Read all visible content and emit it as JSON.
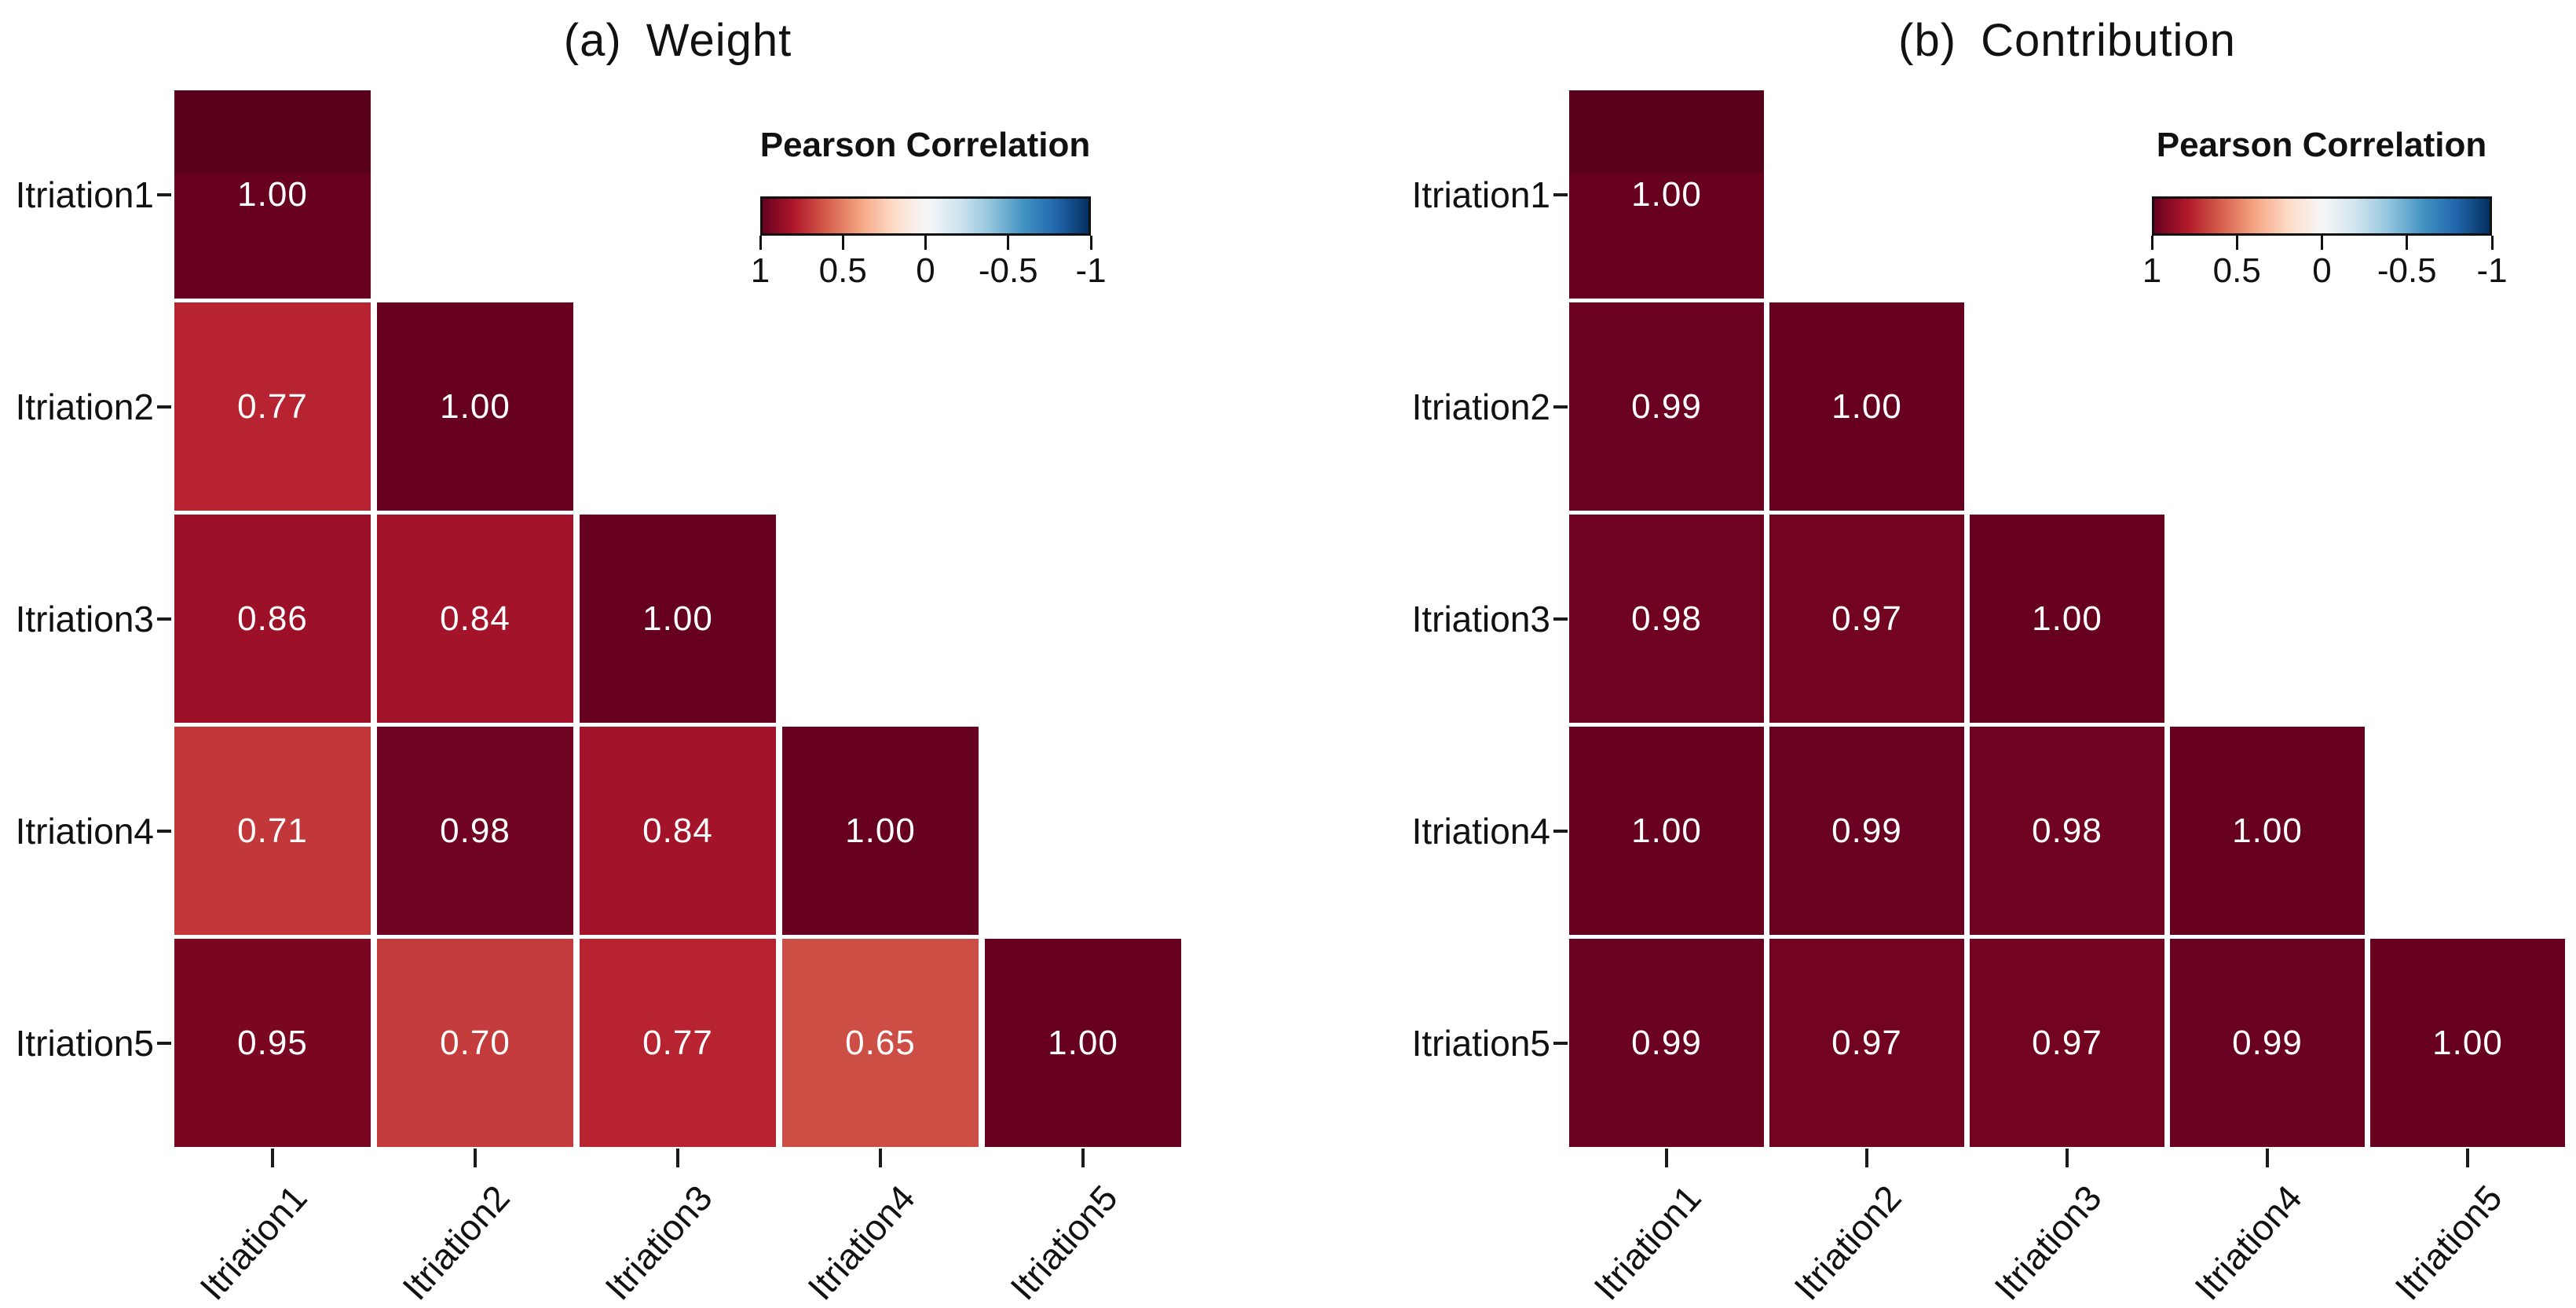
{
  "chart_data": [
    {
      "type": "heatmap",
      "title": "(a) Weight",
      "title_prefix": "(a)",
      "title_text": "Weight",
      "shape": "lower-triangular",
      "categories": [
        "Itriation1",
        "Itriation2",
        "Itriation3",
        "Itriation4",
        "Itriation5"
      ],
      "row_labels": [
        "Itriation1",
        "Itriation2",
        "Itriation3",
        "Itriation4",
        "Itriation5"
      ],
      "col_labels": [
        "Itriation1",
        "Itriation2",
        "Itriation3",
        "Itriation4",
        "Itriation5"
      ],
      "matrix_lower_triangle": [
        [
          1.0
        ],
        [
          0.77,
          1.0
        ],
        [
          0.86,
          0.84,
          1.0
        ],
        [
          0.71,
          0.98,
          0.84,
          1.0
        ],
        [
          0.95,
          0.7,
          0.77,
          0.65,
          1.0
        ]
      ],
      "value_decimals": 2,
      "legend_title": "Pearson Correlation",
      "colorbar_ticks": [
        "1",
        "0.5",
        "0",
        "-0.5",
        "-1"
      ],
      "colorbar_range": [
        1,
        -1
      ],
      "colormap_name": "RdBu (red = +1, blue = -1)"
    },
    {
      "type": "heatmap",
      "title": "(b) Contribution",
      "title_prefix": "(b)",
      "title_text": "Contribution",
      "shape": "lower-triangular",
      "categories": [
        "Itriation1",
        "Itriation2",
        "Itriation3",
        "Itriation4",
        "Itriation5"
      ],
      "row_labels": [
        "Itriation1",
        "Itriation2",
        "Itriation3",
        "Itriation4",
        "Itriation5"
      ],
      "col_labels": [
        "Itriation1",
        "Itriation2",
        "Itriation3",
        "Itriation4",
        "Itriation5"
      ],
      "matrix_lower_triangle": [
        [
          1.0
        ],
        [
          0.99,
          1.0
        ],
        [
          0.98,
          0.97,
          1.0
        ],
        [
          1.0,
          0.99,
          0.98,
          1.0
        ],
        [
          0.99,
          0.97,
          0.97,
          0.99,
          1.0
        ]
      ],
      "value_decimals": 2,
      "legend_title": "Pearson Correlation",
      "colorbar_ticks": [
        "1",
        "0.5",
        "0",
        "-0.5",
        "-1"
      ],
      "colorbar_range": [
        1,
        -1
      ],
      "colormap_name": "RdBu (red = +1, blue = -1)"
    }
  ],
  "colors": {
    "colormap_rdbu_anchors": [
      "#67001f",
      "#b2182b",
      "#d6604d",
      "#f4a582",
      "#fddbc7",
      "#f7f7f7",
      "#d1e5f0",
      "#92c5de",
      "#4393c3",
      "#2166ac",
      "#053061"
    ],
    "cell_value_text": "#ffffff",
    "axis_text": "#111111",
    "tick_mark": "#1a1a1a",
    "background": "#ffffff"
  }
}
